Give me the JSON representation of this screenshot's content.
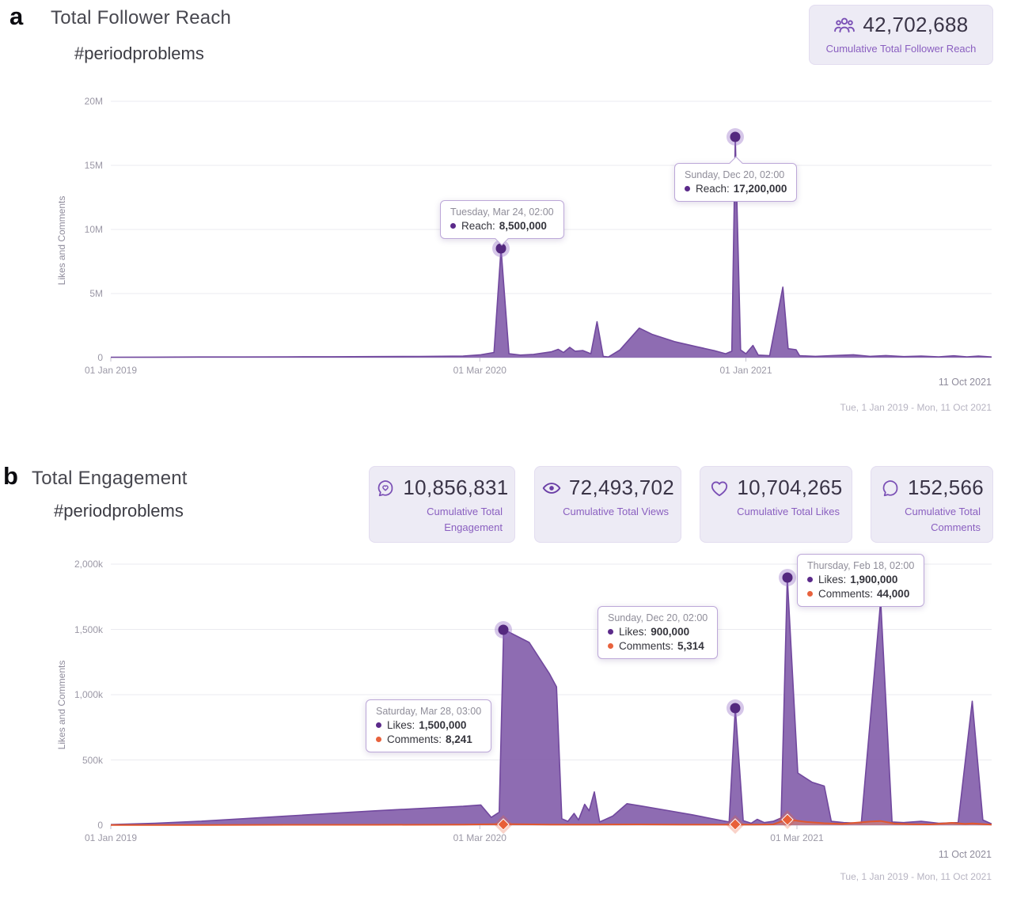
{
  "accent": {
    "purple_area": "#8460ab",
    "purple_line": "#71489e",
    "marker_purple": "#54287f",
    "orange": "#e85f38",
    "card_bg": "#edebf5",
    "card_label_purple": "#8a5fc0"
  },
  "panel_a": {
    "label": "a",
    "title": "Total Follower Reach",
    "subtitle": "#periodproblems",
    "stat_card": {
      "icon": "followers-icon",
      "value": "42,702,688",
      "label": "Cumulative Total Follower Reach"
    },
    "tooltips": [
      {
        "title": "Tuesday, Mar 24, 02:00",
        "rows": [
          {
            "series": "Reach",
            "label": "Reach:",
            "value": "8,500,000"
          }
        ]
      },
      {
        "title": "Sunday, Dec 20, 02:00",
        "rows": [
          {
            "series": "Reach",
            "label": "Reach:",
            "value": "17,200,000"
          }
        ]
      }
    ],
    "footer": "Tue, 1 Jan 2019 - Mon, 11 Oct 2021"
  },
  "panel_b": {
    "label": "b",
    "title": "Total Engagement",
    "subtitle": "#periodproblems",
    "cards": [
      {
        "icon": "engagement-icon",
        "value": "10,856,831",
        "label": "Cumulative Total Engagement"
      },
      {
        "icon": "views-icon",
        "value": "72,493,702",
        "label": "Cumulative Total Views"
      },
      {
        "icon": "likes-icon",
        "value": "10,704,265",
        "label": "Cumulative Total Likes"
      },
      {
        "icon": "comments-icon",
        "value": "152,566",
        "label": "Cumulative Total Comments"
      }
    ],
    "tooltips": [
      {
        "title": "Saturday, Mar 28, 03:00",
        "rows": [
          {
            "series": "Likes",
            "label": "Likes:",
            "value": "1,500,000"
          },
          {
            "series": "Comments",
            "label": "Comments:",
            "value": "8,241"
          }
        ]
      },
      {
        "title": "Sunday, Dec 20, 02:00",
        "rows": [
          {
            "series": "Likes",
            "label": "Likes:",
            "value": "900,000"
          },
          {
            "series": "Comments",
            "label": "Comments:",
            "value": "5,314"
          }
        ]
      },
      {
        "title": "Thursday, Feb 18, 02:00",
        "rows": [
          {
            "series": "Likes",
            "label": "Likes:",
            "value": "1,900,000"
          },
          {
            "series": "Comments",
            "label": "Comments:",
            "value": "44,000"
          }
        ]
      }
    ],
    "footer": "Tue, 1 Jan 2019 - Mon, 11 Oct 2021"
  },
  "chart_data": [
    {
      "id": "a",
      "type": "area",
      "title": "Total Follower Reach #periodproblems",
      "ylabel": "Likes and Comments",
      "unit": "M",
      "ylim": [
        0,
        20
      ],
      "yticks": [
        {
          "v": 20,
          "label": "20M"
        },
        {
          "v": 15,
          "label": "15M"
        },
        {
          "v": 10,
          "label": "10M"
        },
        {
          "v": 5,
          "label": "5M"
        },
        {
          "v": 0,
          "label": "0"
        }
      ],
      "xticks": [
        {
          "f": 0.0,
          "label": "01 Jan 2019"
        },
        {
          "f": 0.419,
          "label": "01 Mar 2020"
        },
        {
          "f": 0.721,
          "label": "01 Jan 2021"
        }
      ],
      "end_label": "11 Oct 2021",
      "x_range": [
        "Tue, 1 Jan 2019",
        "Mon, 11 Oct 2021"
      ],
      "grid": true,
      "series": [
        {
          "name": "Reach",
          "color": "#71489e",
          "fill": "#8460ab",
          "points": [
            [
              0,
              0.03
            ],
            [
              0.05,
              0.04
            ],
            [
              0.1,
              0.05
            ],
            [
              0.15,
              0.05
            ],
            [
              0.2,
              0.06
            ],
            [
              0.25,
              0.07
            ],
            [
              0.3,
              0.08
            ],
            [
              0.35,
              0.09
            ],
            [
              0.4,
              0.12
            ],
            [
              0.42,
              0.22
            ],
            [
              0.435,
              0.4
            ],
            [
              0.443,
              8.5
            ],
            [
              0.452,
              0.3
            ],
            [
              0.465,
              0.2
            ],
            [
              0.48,
              0.25
            ],
            [
              0.5,
              0.45
            ],
            [
              0.508,
              0.65
            ],
            [
              0.514,
              0.4
            ],
            [
              0.521,
              0.8
            ],
            [
              0.527,
              0.5
            ],
            [
              0.536,
              0.55
            ],
            [
              0.545,
              0.3
            ],
            [
              0.552,
              2.8
            ],
            [
              0.559,
              0.1
            ],
            [
              0.565,
              0.05
            ],
            [
              0.578,
              0.6
            ],
            [
              0.6,
              2.3
            ],
            [
              0.615,
              1.8
            ],
            [
              0.64,
              1.25
            ],
            [
              0.665,
              0.85
            ],
            [
              0.685,
              0.55
            ],
            [
              0.698,
              0.3
            ],
            [
              0.705,
              0.5
            ],
            [
              0.709,
              17.2
            ],
            [
              0.715,
              0.6
            ],
            [
              0.721,
              0.3
            ],
            [
              0.729,
              0.95
            ],
            [
              0.735,
              0.2
            ],
            [
              0.748,
              0.15
            ],
            [
              0.763,
              5.5
            ],
            [
              0.769,
              0.7
            ],
            [
              0.778,
              0.62
            ],
            [
              0.782,
              0.15
            ],
            [
              0.8,
              0.1
            ],
            [
              0.82,
              0.16
            ],
            [
              0.843,
              0.22
            ],
            [
              0.862,
              0.1
            ],
            [
              0.88,
              0.16
            ],
            [
              0.9,
              0.08
            ],
            [
              0.92,
              0.12
            ],
            [
              0.94,
              0.06
            ],
            [
              0.957,
              0.14
            ],
            [
              0.972,
              0.06
            ],
            [
              0.985,
              0.12
            ],
            [
              1,
              0.05
            ]
          ]
        }
      ],
      "markers": [
        {
          "f": 0.443,
          "v": 8.5,
          "shape": "circle",
          "date": "Tuesday, Mar 24, 02:00"
        },
        {
          "f": 0.709,
          "v": 17.2,
          "shape": "circle",
          "date": "Sunday, Dec 20, 02:00"
        }
      ]
    },
    {
      "id": "b",
      "type": "area",
      "title": "Total Engagement #periodproblems",
      "ylabel": "Likes and Comments",
      "unit": "k",
      "ylim": [
        0,
        2000
      ],
      "yticks": [
        {
          "v": 2000,
          "label": "2,000k"
        },
        {
          "v": 1500,
          "label": "1,500k"
        },
        {
          "v": 1000,
          "label": "1,000k"
        },
        {
          "v": 500,
          "label": "500k"
        },
        {
          "v": 0,
          "label": "0"
        }
      ],
      "xticks": [
        {
          "f": 0.0,
          "label": "01 Jan 2019"
        },
        {
          "f": 0.419,
          "label": "01 Mar 2020"
        },
        {
          "f": 0.779,
          "label": "01 Mar 2021"
        }
      ],
      "end_label": "11 Oct 2021",
      "x_range": [
        "Tue, 1 Jan 2019",
        "Mon, 11 Oct 2021"
      ],
      "grid": true,
      "series": [
        {
          "name": "Likes",
          "color": "#71489e",
          "fill": "#8460ab",
          "points": [
            [
              0,
              5
            ],
            [
              0.05,
              15
            ],
            [
              0.1,
              30
            ],
            [
              0.15,
              50
            ],
            [
              0.2,
              70
            ],
            [
              0.25,
              90
            ],
            [
              0.3,
              110
            ],
            [
              0.35,
              128
            ],
            [
              0.4,
              145
            ],
            [
              0.42,
              155
            ],
            [
              0.432,
              60
            ],
            [
              0.441,
              100
            ],
            [
              0.446,
              1500
            ],
            [
              0.475,
              1400
            ],
            [
              0.498,
              1160
            ],
            [
              0.506,
              1060
            ],
            [
              0.512,
              50
            ],
            [
              0.519,
              30
            ],
            [
              0.526,
              90
            ],
            [
              0.531,
              40
            ],
            [
              0.538,
              160
            ],
            [
              0.543,
              110
            ],
            [
              0.549,
              255
            ],
            [
              0.555,
              25
            ],
            [
              0.57,
              70
            ],
            [
              0.586,
              165
            ],
            [
              0.6,
              150
            ],
            [
              0.63,
              115
            ],
            [
              0.66,
              80
            ],
            [
              0.69,
              40
            ],
            [
              0.702,
              25
            ],
            [
              0.709,
              900
            ],
            [
              0.718,
              35
            ],
            [
              0.727,
              15
            ],
            [
              0.734,
              45
            ],
            [
              0.742,
              20
            ],
            [
              0.752,
              30
            ],
            [
              0.761,
              55
            ],
            [
              0.768,
              1900
            ],
            [
              0.78,
              400
            ],
            [
              0.796,
              330
            ],
            [
              0.81,
              300
            ],
            [
              0.818,
              30
            ],
            [
              0.832,
              20
            ],
            [
              0.852,
              15
            ],
            [
              0.874,
              1720
            ],
            [
              0.887,
              25
            ],
            [
              0.9,
              20
            ],
            [
              0.92,
              30
            ],
            [
              0.94,
              15
            ],
            [
              0.962,
              20
            ],
            [
              0.978,
              950
            ],
            [
              0.99,
              40
            ],
            [
              1,
              10
            ]
          ]
        },
        {
          "name": "Comments",
          "color": "#e0572f",
          "fill": "#e8835f",
          "points": [
            [
              0,
              2
            ],
            [
              0.1,
              2
            ],
            [
              0.2,
              3
            ],
            [
              0.3,
              3
            ],
            [
              0.4,
              4
            ],
            [
              0.446,
              8.2
            ],
            [
              0.5,
              4
            ],
            [
              0.55,
              5
            ],
            [
              0.6,
              6
            ],
            [
              0.65,
              4
            ],
            [
              0.7,
              4
            ],
            [
              0.709,
              5.3
            ],
            [
              0.73,
              5
            ],
            [
              0.752,
              6
            ],
            [
              0.768,
              44
            ],
            [
              0.79,
              25
            ],
            [
              0.81,
              15
            ],
            [
              0.83,
              10
            ],
            [
              0.862,
              28
            ],
            [
              0.874,
              32
            ],
            [
              0.89,
              12
            ],
            [
              0.91,
              8
            ],
            [
              0.93,
              6
            ],
            [
              0.955,
              18
            ],
            [
              0.97,
              10
            ],
            [
              0.978,
              14
            ],
            [
              1,
              5
            ]
          ]
        }
      ],
      "markers": [
        {
          "f": 0.446,
          "v": 1500,
          "shape": "circle",
          "date": "Saturday, Mar 28, 03:00"
        },
        {
          "f": 0.709,
          "v": 900,
          "shape": "circle",
          "date": "Sunday, Dec 20, 02:00"
        },
        {
          "f": 0.768,
          "v": 1900,
          "shape": "circle",
          "date": "Thursday, Feb 18, 02:00"
        },
        {
          "f": 0.446,
          "v": 8.2,
          "shape": "diamond",
          "date": "Saturday, Mar 28, 03:00"
        },
        {
          "f": 0.709,
          "v": 5.3,
          "shape": "diamond",
          "date": "Sunday, Dec 20, 02:00"
        },
        {
          "f": 0.768,
          "v": 44,
          "shape": "diamond",
          "date": "Thursday, Feb 18, 02:00"
        }
      ]
    }
  ]
}
